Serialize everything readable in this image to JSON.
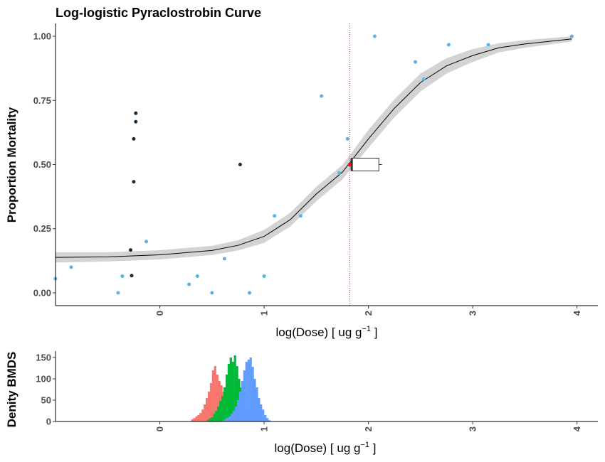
{
  "chart_data": [
    {
      "type": "scatter",
      "title": "Log-logistic Pyraclostrobin Curve",
      "xlabel": "log(Dose) [ ug g",
      "xlabel_sup": "−1",
      "xlabel_end": " ]",
      "ylabel": "Proportion Mortality",
      "xlim": [
        -1.0,
        4.2
      ],
      "ylim": [
        -0.05,
        1.05
      ],
      "x_ticks": [
        0,
        1,
        2,
        3,
        4
      ],
      "x_tick_labels": [
        "0",
        "1",
        "2",
        "3",
        "4"
      ],
      "y_ticks": [
        0.0,
        0.25,
        0.5,
        0.75,
        1.0
      ],
      "y_tick_labels": [
        "0.00",
        "0.25",
        "0.50",
        "0.75",
        "1.00"
      ],
      "grid": false,
      "colors": {
        "points_treated": "#56b4e9",
        "points_control": "#132b43",
        "curve": "#000000",
        "ribbon": "#d3d3d3",
        "ed50_point": "#ff0000",
        "ed50_line": "#e41a1c"
      },
      "series": [
        {
          "name": "",
          "kind": "points",
          "color_key": "points_treated",
          "points": [
            [
              -1.0,
              0.055
            ],
            [
              -0.85,
              0.1
            ],
            [
              -0.4,
              0.0
            ],
            [
              -0.36,
              0.065
            ],
            [
              -0.13,
              0.2
            ],
            [
              0.28,
              0.033
            ],
            [
              0.36,
              0.065
            ],
            [
              0.5,
              0.0
            ],
            [
              0.62,
              0.133
            ],
            [
              0.86,
              0.0
            ],
            [
              1.0,
              0.065
            ],
            [
              1.1,
              0.3
            ],
            [
              1.35,
              0.3
            ],
            [
              1.55,
              0.767
            ],
            [
              1.72,
              0.467
            ],
            [
              1.8,
              0.6
            ],
            [
              2.06,
              1.0
            ],
            [
              2.45,
              0.9
            ],
            [
              2.53,
              0.833
            ],
            [
              2.77,
              0.967
            ],
            [
              3.15,
              0.967
            ],
            [
              3.95,
              1.0
            ]
          ]
        },
        {
          "name": "",
          "kind": "points",
          "color_key": "points_control",
          "points": [
            [
              -0.28,
              0.167
            ],
            [
              -0.27,
              0.067
            ],
            [
              -0.25,
              0.433
            ],
            [
              -0.25,
              0.6
            ],
            [
              -0.23,
              0.667
            ],
            [
              -0.23,
              0.7
            ],
            [
              0.77,
              0.5
            ]
          ]
        },
        {
          "name": "",
          "kind": "line",
          "color_key": "curve",
          "points": [
            [
              -1.0,
              0.138
            ],
            [
              -0.5,
              0.14
            ],
            [
              0.0,
              0.148
            ],
            [
              0.5,
              0.165
            ],
            [
              0.75,
              0.185
            ],
            [
              1.0,
              0.22
            ],
            [
              1.25,
              0.285
            ],
            [
              1.5,
              0.385
            ],
            [
              1.75,
              0.47
            ],
            [
              2.0,
              0.6
            ],
            [
              2.25,
              0.72
            ],
            [
              2.5,
              0.82
            ],
            [
              2.75,
              0.885
            ],
            [
              3.0,
              0.925
            ],
            [
              3.25,
              0.955
            ],
            [
              3.5,
              0.97
            ],
            [
              3.95,
              0.99
            ]
          ]
        },
        {
          "name": "",
          "kind": "ribbon",
          "color_key": "ribbon",
          "points": [
            [
              -1.0,
              0.118,
              0.158
            ],
            [
              -0.5,
              0.122,
              0.158
            ],
            [
              0.0,
              0.13,
              0.166
            ],
            [
              0.5,
              0.147,
              0.183
            ],
            [
              0.75,
              0.165,
              0.205
            ],
            [
              1.0,
              0.195,
              0.245
            ],
            [
              1.25,
              0.258,
              0.312
            ],
            [
              1.5,
              0.357,
              0.413
            ],
            [
              1.75,
              0.442,
              0.498
            ],
            [
              2.0,
              0.565,
              0.635
            ],
            [
              2.25,
              0.685,
              0.755
            ],
            [
              2.5,
              0.785,
              0.855
            ],
            [
              2.75,
              0.855,
              0.915
            ],
            [
              3.0,
              0.9,
              0.95
            ],
            [
              3.25,
              0.937,
              0.973
            ],
            [
              3.5,
              0.955,
              0.985
            ],
            [
              3.95,
              0.98,
              1.0
            ]
          ]
        }
      ],
      "ed50": {
        "x": 1.82,
        "y": 0.5,
        "box": {
          "x_low": 1.83,
          "q1": 1.84,
          "q3": 2.1,
          "whisker_high": 2.13,
          "y": 0.5
        }
      }
    },
    {
      "type": "bar",
      "title": "",
      "xlabel": "log(Dose) [ ug g",
      "xlabel_sup": "−1",
      "xlabel_end": " ]",
      "ylabel": "Denity BMDS",
      "xlim": [
        -1.0,
        4.2
      ],
      "ylim": [
        0,
        165
      ],
      "x_ticks": [
        0,
        1,
        2,
        3,
        4
      ],
      "x_tick_labels": [
        "0",
        "1",
        "2",
        "3",
        "4"
      ],
      "y_ticks": [
        0,
        50,
        100,
        150
      ],
      "y_tick_labels": [
        "0",
        "50",
        "100",
        "150"
      ],
      "grid": false,
      "bin_start": 0.3,
      "bin_width": 0.02,
      "series": [
        {
          "name": "",
          "color": "#f8766d",
          "values": [
            5,
            8,
            12,
            15,
            20,
            28,
            40,
            55,
            70,
            90,
            120,
            130,
            110,
            95,
            85,
            70,
            55,
            40,
            28,
            15,
            8,
            4,
            2,
            1
          ]
        },
        {
          "name": "",
          "color": "#00ba38",
          "values": [
            4,
            7,
            10,
            18,
            25,
            35,
            48,
            60,
            80,
            110,
            135,
            150,
            140,
            155,
            130,
            100,
            80,
            55,
            35,
            20,
            10,
            5,
            2,
            1
          ]
        },
        {
          "name": "",
          "color": "#619cff",
          "values": [
            3,
            6,
            9,
            12,
            18,
            25,
            35,
            50,
            70,
            95,
            120,
            140,
            145,
            150,
            128,
            100,
            80,
            55,
            40,
            28,
            15,
            8,
            3,
            1
          ]
        }
      ]
    }
  ]
}
